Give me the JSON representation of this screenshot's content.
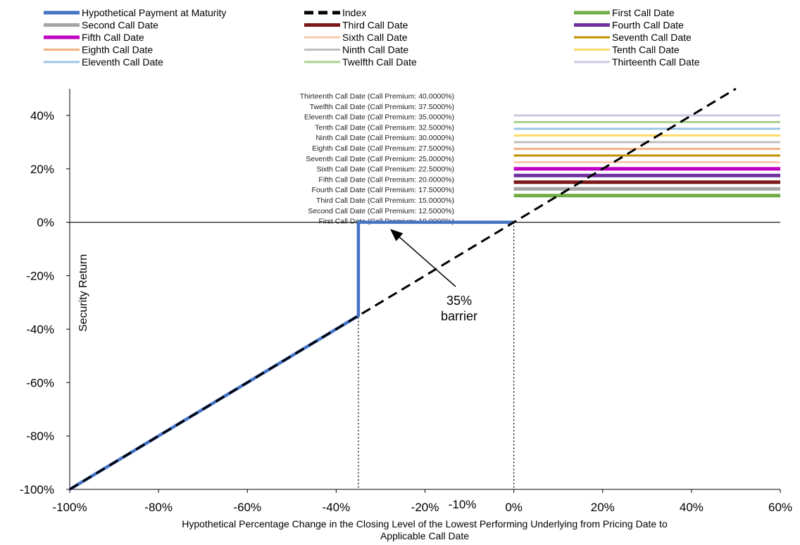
{
  "chart_data": {
    "type": "line",
    "xlabel_lines": [
      "Hypothetical Percentage Change in the Closing Level of the Lowest Performing Underlying from Pricing Date to",
      "Applicable Call Date"
    ],
    "ylabel": "Security Return",
    "xlim": [
      -100,
      60
    ],
    "ylim": [
      -100,
      50
    ],
    "x_ticks": [
      -100,
      -80,
      -60,
      -40,
      -20,
      0,
      20,
      40,
      60
    ],
    "x_tick_labels": [
      "-100%",
      "-80%",
      "-60%",
      "-40%",
      "-20%",
      "0%",
      "20%",
      "40%",
      "60%"
    ],
    "extra_x_tick": {
      "value": -10,
      "label": "-10%"
    },
    "y_ticks": [
      -100,
      -80,
      -60,
      -40,
      -20,
      0,
      20,
      40
    ],
    "y_tick_labels": [
      "-100%",
      "-80%",
      "-60%",
      "-40%",
      "-20%",
      "0%",
      "20%",
      "40%"
    ],
    "series": [
      {
        "name": "Hypothetical Payment at Maturity",
        "color": "#4472C4",
        "style": "solid",
        "x": [
          -100,
          -35,
          -35,
          0
        ],
        "y": [
          -100,
          -35,
          0,
          0
        ]
      },
      {
        "name": "Index",
        "color": "#000000",
        "style": "dashed",
        "x": [
          -100,
          50
        ],
        "y": [
          -100,
          50
        ]
      }
    ],
    "call_dates": [
      {
        "name": "First Call Date",
        "premium_label": "First Call Date (Call Premium: 10.0000%)",
        "value": 10.0,
        "color": "#70AD47",
        "thick": true
      },
      {
        "name": "Second Call Date",
        "premium_label": "Second Call Date (Call Premium: 12.5000%)",
        "value": 12.5,
        "color": "#A5A5A5",
        "thick": true
      },
      {
        "name": "Third Call Date",
        "premium_label": "Third Call Date (Call Premium: 15.0000%)",
        "value": 15.0,
        "color": "#7B1818",
        "thick": true
      },
      {
        "name": "Fourth Call Date",
        "premium_label": "Fourth Call Date (Call Premium: 17.5000%)",
        "value": 17.5,
        "color": "#7030A0",
        "thick": true
      },
      {
        "name": "Fifth Call Date",
        "premium_label": "Fifth Call Date (Call Premium: 20.0000%)",
        "value": 20.0,
        "color": "#C000C0",
        "thick": true
      },
      {
        "name": "Sixth Call Date",
        "premium_label": "Sixth Call Date (Call Premium: 22.5000%)",
        "value": 22.5,
        "color": "#F8CBAD",
        "thick": false
      },
      {
        "name": "Seventh Call Date",
        "premium_label": "Seventh Call Date (Call Premium: 25.0000%)",
        "value": 25.0,
        "color": "#BF9000",
        "thick": false
      },
      {
        "name": "Eighth Call Date",
        "premium_label": "Eighth Call Date (Call Premium: 27.5000%)",
        "value": 27.5,
        "color": "#F4B183",
        "thick": false
      },
      {
        "name": "Ninth Call Date",
        "premium_label": "Ninth Call Date (Call Premium: 30.0000%)",
        "value": 30.0,
        "color": "#BFBFBF",
        "thick": false
      },
      {
        "name": "Tenth Call Date",
        "premium_label": "Tenth Call Date (Call Premium: 32.5000%)",
        "value": 32.5,
        "color": "#FFD966",
        "thick": false
      },
      {
        "name": "Eleventh Call Date",
        "premium_label": "Eleventh Call Date (Call Premium: 35.0000%)",
        "value": 35.0,
        "color": "#9DC3E6",
        "thick": false
      },
      {
        "name": "Twelfth Call Date",
        "premium_label": "Twelfth Call Date (Call Premium: 37.5000%)",
        "value": 37.5,
        "color": "#A9D18E",
        "thick": false
      },
      {
        "name": "Thirteenth Call Date",
        "premium_label": "Thirteenth Call Date (Call Premium: 40.0000%)",
        "value": 40.0,
        "color": "#C9C9E3",
        "thick": false
      }
    ],
    "call_line_x_range": [
      0,
      60
    ],
    "legend_order": [
      "Hypothetical Payment at Maturity",
      "Index",
      "First Call Date",
      "Second Call Date",
      "Third Call Date",
      "Fourth Call Date",
      "Fifth Call Date",
      "Sixth Call Date",
      "Seventh Call Date",
      "Eighth Call Date",
      "Ninth Call Date",
      "Tenth Call Date",
      "Eleventh Call Date",
      "Twelfth Call Date",
      "Thirteenth Call Date"
    ],
    "legend_placement": "top",
    "vertical_reference_lines_x": [
      -35,
      0
    ],
    "annotation": {
      "lines": [
        "35%",
        "barrier"
      ],
      "arrow_target": {
        "x": -27.5,
        "y": -3
      }
    },
    "grid": false
  }
}
